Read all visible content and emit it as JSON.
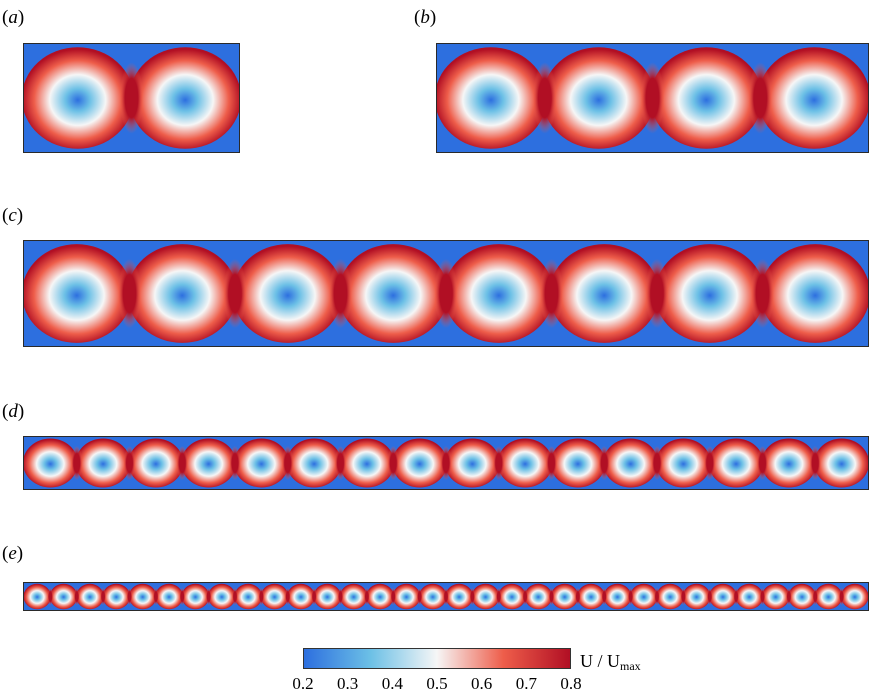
{
  "panels": [
    {
      "label": "a",
      "cells": 2
    },
    {
      "label": "b",
      "cells": 4
    },
    {
      "label": "c",
      "cells": 8
    },
    {
      "label": "d",
      "cells": 16
    },
    {
      "label": "e",
      "cells": 32
    }
  ],
  "colorbar": {
    "title_main": "U / U",
    "title_sub": "max",
    "ticks": [
      "0.2",
      "0.3",
      "0.4",
      "0.5",
      "0.6",
      "0.7",
      "0.8"
    ],
    "range": [
      0.2,
      0.8
    ]
  },
  "colors": {
    "low": "#2d6fdf",
    "low_mid": "#6cc0e6",
    "mid": "#f6f6f6",
    "high_mid": "#ee5d4a",
    "high": "#b10f24"
  }
}
